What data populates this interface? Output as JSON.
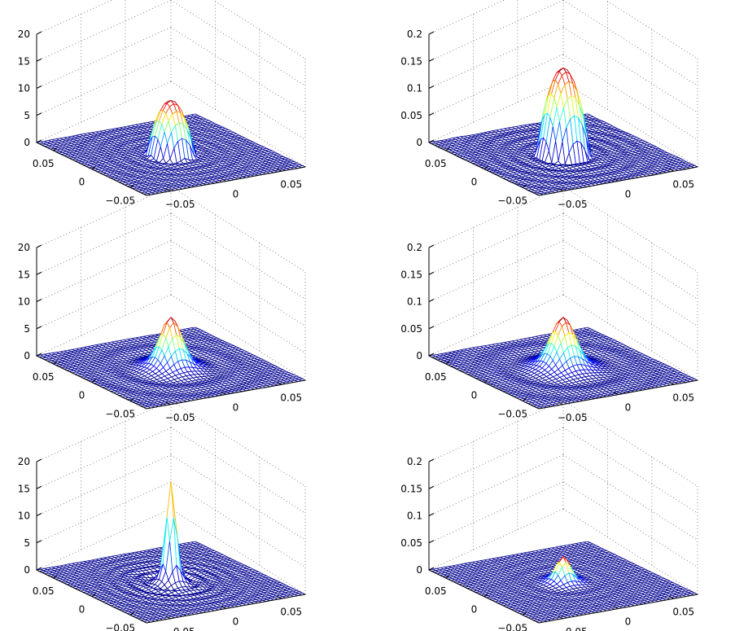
{
  "chart_data": [
    {
      "type": "surface",
      "row": 1,
      "col": 1,
      "zlim": [
        0,
        20
      ],
      "zticks": [
        "0",
        "5",
        "10",
        "15",
        "20"
      ],
      "xticks": [
        "−0.05",
        "0",
        "0.05"
      ],
      "yticks": [
        "−0.05",
        "0",
        "0.05"
      ],
      "peak": 10,
      "width": 0.018,
      "shape": "dome"
    },
    {
      "type": "surface",
      "row": 1,
      "col": 2,
      "zlim": [
        0,
        0.2
      ],
      "zticks": [
        "0",
        "0.05",
        "0.1",
        "0.15",
        "0.2"
      ],
      "xticks": [
        "−0.05",
        "0",
        "0.05"
      ],
      "yticks": [
        "−0.05",
        "0",
        "0.05"
      ],
      "peak": 0.16,
      "width": 0.02,
      "shape": "dome"
    },
    {
      "type": "surface",
      "row": 2,
      "col": 1,
      "zlim": [
        0,
        20
      ],
      "zticks": [
        "0",
        "5",
        "10",
        "15",
        "20"
      ],
      "xticks": [
        "−0.05",
        "0",
        "0.05"
      ],
      "yticks": [
        "−0.05",
        "0",
        "0.05"
      ],
      "peak": 9,
      "width": 0.009,
      "shape": "peak"
    },
    {
      "type": "surface",
      "row": 2,
      "col": 2,
      "zlim": [
        0,
        0.2
      ],
      "zticks": [
        "0",
        "0.05",
        "0.1",
        "0.15",
        "0.2"
      ],
      "xticks": [
        "−0.05",
        "0",
        "0.05"
      ],
      "yticks": [
        "−0.05",
        "0",
        "0.05"
      ],
      "peak": 0.09,
      "width": 0.01,
      "shape": "peak"
    },
    {
      "type": "surface",
      "row": 3,
      "col": 1,
      "zlim": [
        0,
        20
      ],
      "zticks": [
        "0",
        "5",
        "10",
        "15",
        "20"
      ],
      "xticks": [
        "−0.05",
        "0",
        "0.05"
      ],
      "yticks": [
        "−0.05",
        "0",
        "0.05"
      ],
      "peak": 18,
      "width": 0.004,
      "shape": "spike"
    },
    {
      "type": "surface",
      "row": 3,
      "col": 2,
      "zlim": [
        0,
        0.2
      ],
      "zticks": [
        "0",
        "0.05",
        "0.1",
        "0.15",
        "0.2"
      ],
      "xticks": [
        "−0.05",
        "0",
        "0.05"
      ],
      "yticks": [
        "−0.05",
        "0",
        "0.05"
      ],
      "peak": 0.045,
      "width": 0.006,
      "shape": "peak"
    }
  ],
  "colormap": [
    "#00008f",
    "#0000ff",
    "#0080ff",
    "#00ffff",
    "#80ff80",
    "#ffff00",
    "#ff8000",
    "#ff0000",
    "#800000"
  ]
}
